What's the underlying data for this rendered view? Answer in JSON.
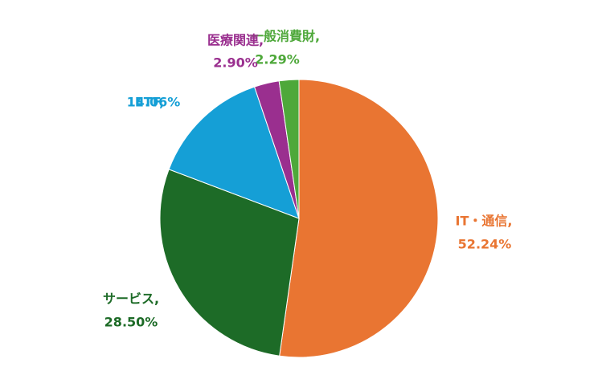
{
  "chart_data": {
    "type": "pie",
    "categories": [
      "IT・通信,",
      "サービス,",
      "ETF,",
      "医療関連,",
      "一般消費財,"
    ],
    "values": [
      52.24,
      28.5,
      14.06,
      2.9,
      2.29
    ],
    "value_labels": [
      "52.24%",
      "28.50%",
      "14.06%",
      "2.90%",
      "2.29%"
    ],
    "colors": [
      "#e97532",
      "#1d6b27",
      "#159fd6",
      "#9a2f8f",
      "#4ea83a"
    ]
  }
}
